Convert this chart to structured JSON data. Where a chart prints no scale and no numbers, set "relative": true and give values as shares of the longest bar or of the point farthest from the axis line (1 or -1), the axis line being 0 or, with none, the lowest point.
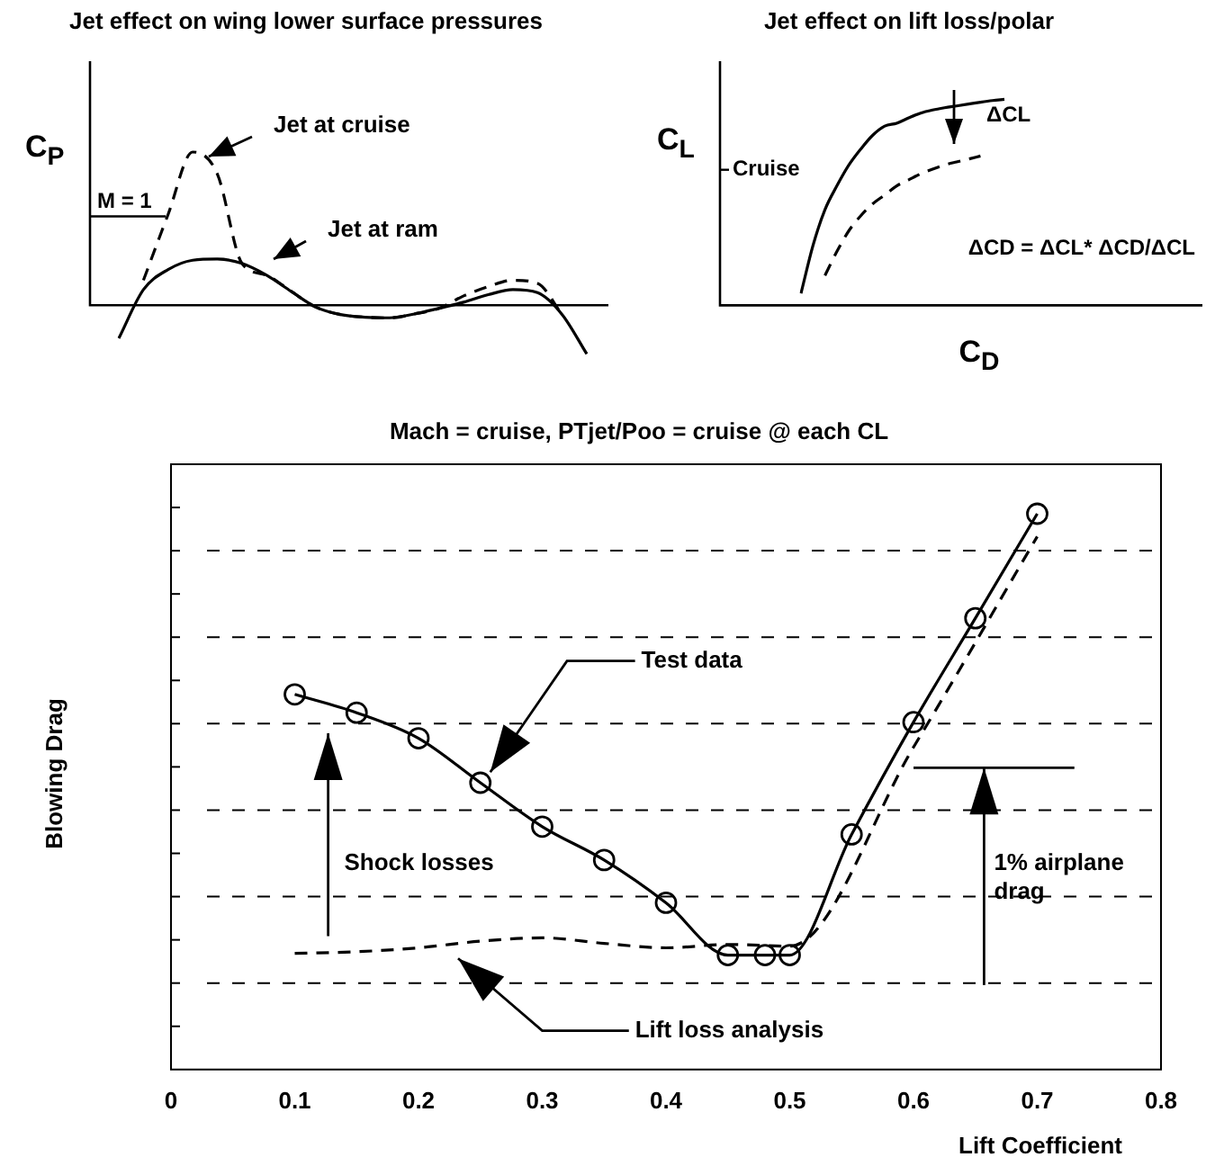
{
  "chart_data": [
    {
      "type": "line",
      "title": "Jet effect on wing lower surface pressures",
      "ylabel": "C$_{P}$",
      "relative": true,
      "categories": [
        null,
        null,
        null,
        null,
        null,
        null,
        null,
        null,
        null,
        null,
        null,
        null,
        null,
        null,
        null,
        null,
        null,
        null,
        null,
        null
      ],
      "series": [
        {
          "name": "Jet at cruise",
          "color": "#000000",
          "line_style": "dashed",
          "values": [
            null,
            0.163,
            0.592,
            1,
            0.857,
            0.273,
            0.196,
            0.09,
            -0.012,
            -0.061,
            -0.078,
            -0.082,
            -0.057,
            -0.02,
            0.061,
            0.122,
            0.163,
            0.143,
            -0.061,
            null
          ]
        },
        {
          "name": "Jet at ram",
          "color": "#000000",
          "line_style": "solid",
          "values": [
            -0.216,
            0.102,
            0.233,
            0.294,
            0.302,
            0.273,
            0.196,
            0.09,
            -0.012,
            -0.061,
            -0.078,
            -0.082,
            -0.057,
            -0.02,
            0.02,
            0.069,
            0.102,
            0.082,
            -0.061,
            -0.318
          ]
        }
      ],
      "ref_lines": [
        {
          "axis": "y",
          "value": 0.58,
          "label": "M = 1"
        }
      ]
    },
    {
      "type": "line",
      "title": "Jet effect on lift loss/polar",
      "xlabel": "C$_{D}$",
      "ylabel": "C$_{L}$",
      "relative": true,
      "categories": [
        null,
        null,
        null,
        null,
        null,
        null,
        null,
        null,
        null,
        null,
        null,
        null,
        null,
        null,
        null,
        null,
        null,
        null
      ],
      "series": [
        {
          "color": "#000000",
          "line_style": "solid",
          "values": [
            0.058,
            0.29,
            0.464,
            0.58,
            0.681,
            0.759,
            0.826,
            0.87,
            0.884,
            0.91,
            0.933,
            0.948,
            0.959,
            0.968,
            0.977,
            0.986,
            0.994,
            1
          ]
        },
        {
          "color": "#000000",
          "line_style": "dashed",
          "values": [
            null,
            null,
            0.145,
            0.261,
            0.362,
            0.435,
            0.493,
            0.536,
            0.58,
            0.609,
            0.638,
            0.661,
            0.681,
            0.696,
            0.71,
            0.725,
            null,
            null
          ]
        }
      ],
      "annotations": [
        "Cruise",
        "ΔCL",
        "ΔCD = ΔCL* ΔCD/ΔCL"
      ]
    },
    {
      "type": "line",
      "title": "Mach = cruise, PTjet/Poo = cruise @ each CL",
      "xlabel": "Lift Coefficient",
      "ylabel": "Blowing Drag",
      "relative": true,
      "xlim": [
        0,
        0.8
      ],
      "xticks": [
        0,
        0.1,
        0.2,
        0.3,
        0.4,
        0.5,
        0.6,
        0.7,
        0.8
      ],
      "grid": "y",
      "series": [
        {
          "name": "Test data",
          "color": "#000000",
          "line_style": "solid",
          "marker": "circle",
          "x": [
            0.1,
            0.15,
            0.2,
            0.25,
            0.3,
            0.35,
            0.4,
            0.45,
            0.48,
            0.5,
            0.55,
            0.6,
            0.65,
            0.7
          ],
          "values": [
            0.675,
            0.642,
            0.596,
            0.516,
            0.437,
            0.377,
            0.3,
            0.206,
            0.206,
            0.206,
            0.423,
            0.625,
            0.812,
            1
          ]
        },
        {
          "name": "Lift loss analysis",
          "color": "#000000",
          "line_style": "dashed",
          "marker": "none",
          "x": [
            0.1,
            0.15,
            0.2,
            0.25,
            0.3,
            0.35,
            0.4,
            0.45,
            0.5,
            0.6,
            0.7
          ],
          "values": [
            0.209,
            0.212,
            0.219,
            0.231,
            0.237,
            0.227,
            0.219,
            0.225,
            0.222,
            0.58,
            0.959
          ]
        }
      ],
      "annotations": [
        "Shock losses",
        "1% airplane drag"
      ]
    }
  ]
}
